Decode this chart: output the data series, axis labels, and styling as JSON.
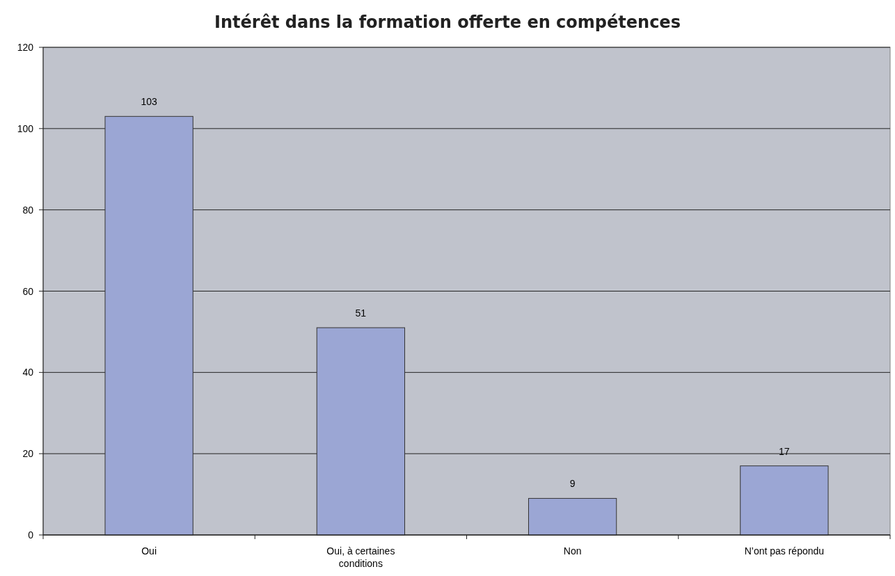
{
  "chart_data": {
    "type": "bar",
    "title": "Intérêt dans la formation offerte en compétences",
    "categories": [
      "Oui",
      "Oui, à certaines conditions",
      "Non",
      "N’ont pas répondu"
    ],
    "values": [
      103,
      51,
      9,
      17
    ],
    "color": "#9ba6d4",
    "ylim": [
      0,
      120
    ],
    "yticks": [
      0,
      20,
      40,
      60,
      80,
      100,
      120
    ],
    "grid": "y",
    "data_labels": true
  }
}
